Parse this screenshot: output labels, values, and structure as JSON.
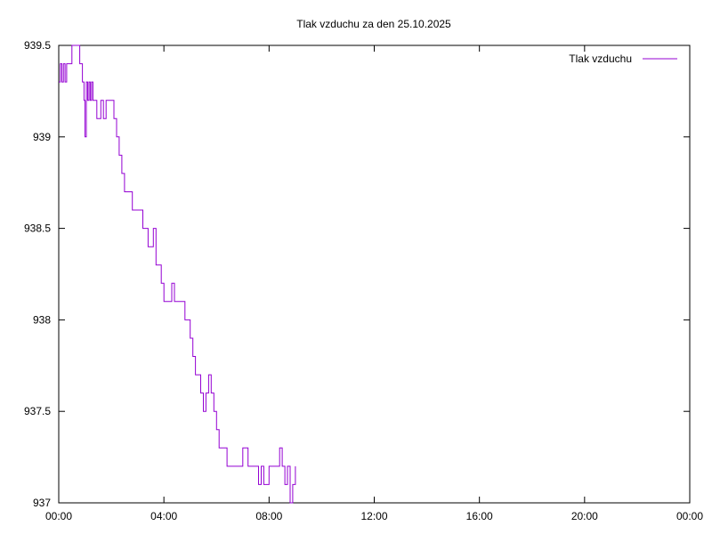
{
  "chart_data": {
    "type": "line",
    "title": "Tlak vzduchu za den 25.10.2025",
    "xlabel": "",
    "ylabel": "",
    "xlim": [
      0,
      24
    ],
    "ylim": [
      937,
      939.5
    ],
    "x_tick_labels": [
      "00:00",
      "04:00",
      "08:00",
      "12:00",
      "16:00",
      "20:00",
      "00:00"
    ],
    "x_tick_values": [
      0,
      4,
      8,
      12,
      16,
      20,
      24
    ],
    "y_tick_labels": [
      "937",
      "937.5",
      "938",
      "938.5",
      "939",
      "939.5"
    ],
    "y_tick_values": [
      937,
      937.5,
      938,
      938.5,
      939,
      939.5
    ],
    "grid": false,
    "legend_position": "top-right",
    "series": [
      {
        "name": "Tlak vzduchu",
        "color": "#9400d3",
        "step": true,
        "x": [
          0.0,
          0.06,
          0.12,
          0.18,
          0.24,
          0.3,
          0.4,
          0.5,
          0.6,
          0.7,
          0.8,
          0.9,
          0.96,
          1.0,
          1.05,
          1.1,
          1.15,
          1.2,
          1.25,
          1.3,
          1.35,
          1.4,
          1.45,
          1.6,
          1.7,
          1.8,
          1.9,
          2.0,
          2.1,
          2.2,
          2.3,
          2.4,
          2.5,
          2.6,
          2.7,
          2.8,
          2.9,
          3.0,
          3.2,
          3.4,
          3.6,
          3.7,
          3.8,
          3.9,
          4.0,
          4.1,
          4.2,
          4.3,
          4.4,
          4.6,
          4.8,
          4.9,
          5.0,
          5.1,
          5.2,
          5.4,
          5.5,
          5.6,
          5.7,
          5.8,
          5.9,
          6.0,
          6.1,
          6.2,
          6.3,
          6.4,
          6.6,
          6.8,
          7.0,
          7.2,
          7.4,
          7.5,
          7.6,
          7.7,
          7.8,
          7.9,
          8.0,
          8.1,
          8.2,
          8.3,
          8.4,
          8.5,
          8.6,
          8.7,
          8.8,
          8.9,
          9.0
        ],
        "y": [
          939.3,
          939.4,
          939.3,
          939.4,
          939.3,
          939.4,
          939.4,
          939.5,
          939.5,
          939.5,
          939.4,
          939.3,
          939.2,
          939.0,
          939.3,
          939.2,
          939.3,
          939.2,
          939.3,
          939.2,
          939.2,
          939.2,
          939.1,
          939.2,
          939.1,
          939.2,
          939.2,
          939.2,
          939.1,
          939.0,
          938.9,
          938.8,
          938.7,
          938.7,
          938.7,
          938.6,
          938.6,
          938.6,
          938.5,
          938.4,
          938.5,
          938.3,
          938.3,
          938.2,
          938.1,
          938.1,
          938.1,
          938.2,
          938.1,
          938.1,
          938.0,
          938.0,
          937.9,
          937.8,
          937.7,
          937.6,
          937.5,
          937.6,
          937.7,
          937.6,
          937.5,
          937.4,
          937.3,
          937.3,
          937.3,
          937.2,
          937.2,
          937.2,
          937.3,
          937.2,
          937.2,
          937.2,
          937.1,
          937.2,
          937.1,
          937.1,
          937.2,
          937.2,
          937.2,
          937.2,
          937.3,
          937.2,
          937.1,
          937.2,
          937.0,
          937.1,
          937.2
        ]
      }
    ]
  }
}
